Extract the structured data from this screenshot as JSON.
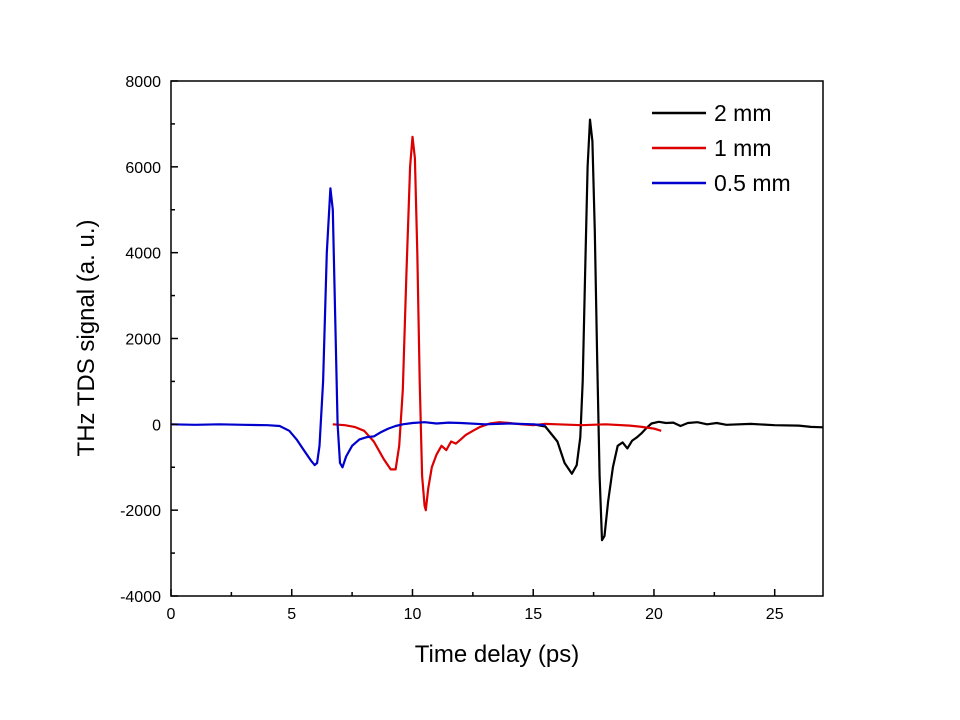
{
  "chart_data": {
    "type": "line",
    "xlabel": "Time delay (ps)",
    "ylabel": "THz TDS signal (a. u.)",
    "xlim": [
      0,
      27
    ],
    "ylim": [
      -4000,
      8000
    ],
    "xticks": [
      0,
      5,
      10,
      15,
      20,
      25
    ],
    "xtick_labels": [
      "0",
      "5",
      "10",
      "15",
      "20",
      "25"
    ],
    "yticks": [
      -4000,
      -2000,
      0,
      2000,
      4000,
      6000,
      8000
    ],
    "ytick_labels": [
      "-4000",
      "-2000",
      "0",
      "2000",
      "4000",
      "6000",
      "8000"
    ],
    "grid": false,
    "legend_position": "top-right",
    "series": [
      {
        "name": "2 mm",
        "color": "#000000",
        "points": [
          [
            15.0,
            0
          ],
          [
            15.5,
            -50
          ],
          [
            16.0,
            -400
          ],
          [
            16.3,
            -900
          ],
          [
            16.6,
            -1150
          ],
          [
            16.8,
            -950
          ],
          [
            16.95,
            -300
          ],
          [
            17.05,
            1000
          ],
          [
            17.15,
            3500
          ],
          [
            17.25,
            6000
          ],
          [
            17.35,
            7100
          ],
          [
            17.45,
            6600
          ],
          [
            17.55,
            4500
          ],
          [
            17.65,
            1500
          ],
          [
            17.75,
            -1200
          ],
          [
            17.85,
            -2700
          ],
          [
            17.95,
            -2600
          ],
          [
            18.1,
            -1800
          ],
          [
            18.3,
            -1000
          ],
          [
            18.5,
            -500
          ],
          [
            18.7,
            -420
          ],
          [
            18.9,
            -560
          ],
          [
            19.1,
            -380
          ],
          [
            19.3,
            -300
          ],
          [
            19.5,
            -200
          ],
          [
            19.7,
            -80
          ],
          [
            19.9,
            20
          ],
          [
            20.2,
            60
          ],
          [
            20.5,
            30
          ],
          [
            20.8,
            40
          ],
          [
            21.1,
            -40
          ],
          [
            21.4,
            30
          ],
          [
            21.8,
            50
          ],
          [
            22.2,
            0
          ],
          [
            22.6,
            30
          ],
          [
            23.0,
            -10
          ],
          [
            24.0,
            10
          ],
          [
            25.0,
            -20
          ],
          [
            26.0,
            -30
          ],
          [
            26.5,
            -60
          ],
          [
            27.0,
            -70
          ]
        ]
      },
      {
        "name": "1 mm",
        "color": "#dd0000",
        "points": [
          [
            6.7,
            0
          ],
          [
            7.2,
            -20
          ],
          [
            7.6,
            -60
          ],
          [
            8.0,
            -150
          ],
          [
            8.4,
            -400
          ],
          [
            8.8,
            -800
          ],
          [
            9.1,
            -1050
          ],
          [
            9.3,
            -1050
          ],
          [
            9.45,
            -500
          ],
          [
            9.6,
            800
          ],
          [
            9.75,
            3500
          ],
          [
            9.9,
            6000
          ],
          [
            10.0,
            6700
          ],
          [
            10.1,
            6200
          ],
          [
            10.2,
            4000
          ],
          [
            10.3,
            1000
          ],
          [
            10.4,
            -1200
          ],
          [
            10.5,
            -1900
          ],
          [
            10.55,
            -2000
          ],
          [
            10.65,
            -1500
          ],
          [
            10.8,
            -1000
          ],
          [
            11.0,
            -700
          ],
          [
            11.2,
            -500
          ],
          [
            11.4,
            -600
          ],
          [
            11.6,
            -400
          ],
          [
            11.8,
            -450
          ],
          [
            12.0,
            -350
          ],
          [
            12.2,
            -250
          ],
          [
            12.5,
            -150
          ],
          [
            12.8,
            -60
          ],
          [
            13.2,
            20
          ],
          [
            13.6,
            50
          ],
          [
            14.0,
            30
          ],
          [
            14.5,
            0
          ],
          [
            15.0,
            -20
          ],
          [
            15.5,
            10
          ],
          [
            16.0,
            0
          ],
          [
            17.0,
            -20
          ],
          [
            18.0,
            0
          ],
          [
            19.0,
            -30
          ],
          [
            19.5,
            -60
          ],
          [
            20.0,
            -100
          ],
          [
            20.3,
            -150
          ]
        ]
      },
      {
        "name": "0.5 mm",
        "color": "#0000cc",
        "points": [
          [
            0.0,
            0
          ],
          [
            1.0,
            -10
          ],
          [
            2.0,
            0
          ],
          [
            3.0,
            -10
          ],
          [
            4.0,
            -20
          ],
          [
            4.5,
            -40
          ],
          [
            4.9,
            -150
          ],
          [
            5.2,
            -350
          ],
          [
            5.5,
            -600
          ],
          [
            5.8,
            -850
          ],
          [
            5.95,
            -950
          ],
          [
            6.05,
            -900
          ],
          [
            6.15,
            -500
          ],
          [
            6.3,
            1000
          ],
          [
            6.45,
            4000
          ],
          [
            6.6,
            5500
          ],
          [
            6.7,
            5000
          ],
          [
            6.8,
            2500
          ],
          [
            6.9,
            0
          ],
          [
            7.0,
            -900
          ],
          [
            7.1,
            -1000
          ],
          [
            7.25,
            -750
          ],
          [
            7.5,
            -500
          ],
          [
            7.8,
            -350
          ],
          [
            8.1,
            -300
          ],
          [
            8.4,
            -280
          ],
          [
            8.7,
            -180
          ],
          [
            9.0,
            -100
          ],
          [
            9.3,
            -40
          ],
          [
            9.6,
            0
          ],
          [
            10.0,
            30
          ],
          [
            10.5,
            50
          ],
          [
            11.0,
            20
          ],
          [
            11.5,
            40
          ],
          [
            12.0,
            30
          ],
          [
            13.0,
            0
          ],
          [
            14.0,
            20
          ],
          [
            15.0,
            0
          ],
          [
            15.5,
            -20
          ]
        ]
      }
    ]
  }
}
